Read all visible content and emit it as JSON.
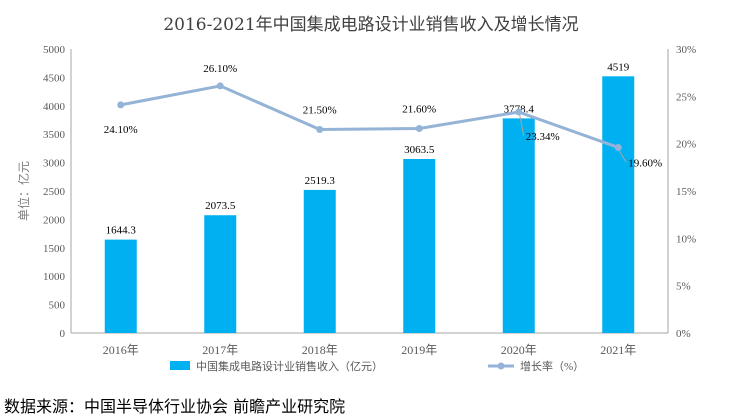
{
  "title": "2016-2021年中国集成电路设计业销售收入及增长情况",
  "source": "数据来源：中国半导体行业协会 前瞻产业研究院",
  "chart_data": {
    "type": "bar",
    "categories": [
      "2016年",
      "2017年",
      "2018年",
      "2019年",
      "2020年",
      "2021年"
    ],
    "series": [
      {
        "name": "中国集成电路设计业销售收入（亿元）",
        "type": "bar",
        "axis": "left",
        "values": [
          1644.3,
          2073.5,
          2519.3,
          3063.5,
          3778.4,
          4519
        ],
        "labels": [
          "1644.3",
          "2073.5",
          "2519.3",
          "3063.5",
          "3778.4",
          "4519"
        ],
        "color": "#00b0f0"
      },
      {
        "name": "增长率（%）",
        "type": "line",
        "axis": "right",
        "values": [
          24.1,
          26.1,
          21.5,
          21.6,
          23.34,
          19.6
        ],
        "labels": [
          "24.10%",
          "26.10%",
          "21.50%",
          "21.60%",
          "23.34%",
          "19.60%"
        ],
        "color": "#95b3d7"
      }
    ],
    "ylabel": "单位：亿元",
    "ylim": [
      0,
      5000
    ],
    "yticks": [
      "0",
      "500",
      "1000",
      "1500",
      "2000",
      "2500",
      "3000",
      "3500",
      "4000",
      "4500",
      "5000"
    ],
    "y2lim": [
      0,
      30
    ],
    "y2ticks": [
      "0%",
      "5%",
      "10%",
      "15%",
      "20%",
      "25%",
      "30%"
    ],
    "legend_position": "bottom",
    "grid": false
  }
}
